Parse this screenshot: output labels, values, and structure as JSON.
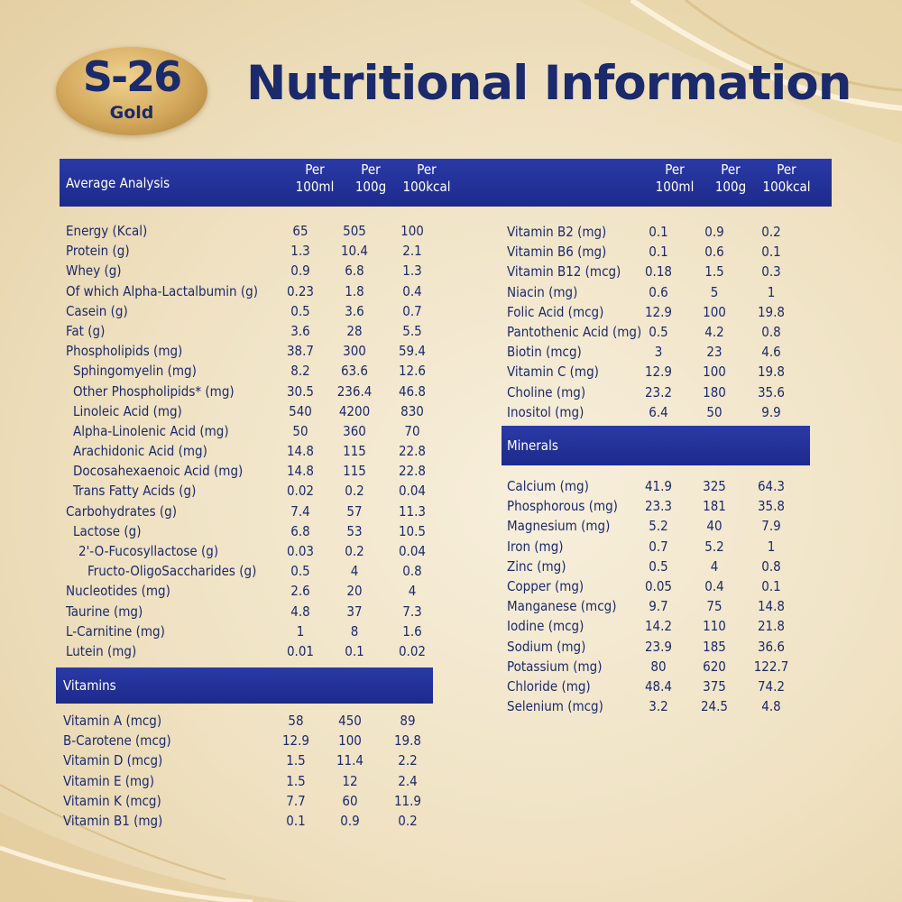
{
  "logo": {
    "brand": "S-26",
    "sub": "Gold"
  },
  "title": "Nutritional Information",
  "headers": {
    "average_analysis": "Average Analysis",
    "columns": [
      "Per\n100ml",
      "Per\n100g",
      "Per\n100kcal"
    ],
    "vitamins": "Vitamins",
    "minerals": "Minerals"
  },
  "average_analysis_rows": [
    {
      "name": "Energy (Kcal)",
      "v": [
        "65",
        "505",
        "100"
      ]
    },
    {
      "name": "Protein (g)",
      "v": [
        "1.3",
        "10.4",
        "2.1"
      ]
    },
    {
      "name": "Whey (g)",
      "v": [
        "0.9",
        "6.8",
        "1.3"
      ]
    },
    {
      "name": "Of which Alpha-Lactalbumin (g)",
      "v": [
        "0.23",
        "1.8",
        "0.4"
      ]
    },
    {
      "name": "Casein (g)",
      "v": [
        "0.5",
        "3.6",
        "0.7"
      ]
    },
    {
      "name": "Fat (g)",
      "v": [
        "3.6",
        "28",
        "5.5"
      ]
    },
    {
      "name": "Phospholipids (mg)",
      "v": [
        "38.7",
        "300",
        "59.4"
      ]
    },
    {
      "name": "Sphingomyelin (mg)",
      "v": [
        "8.2",
        "63.6",
        "12.6"
      ],
      "indent": 1
    },
    {
      "name": "Other Phospholipids* (mg)",
      "v": [
        "30.5",
        "236.4",
        "46.8"
      ],
      "indent": 1
    },
    {
      "name": "Linoleic Acid (mg)",
      "v": [
        "540",
        "4200",
        "830"
      ],
      "indent": 1
    },
    {
      "name": "Alpha-Linolenic Acid (mg)",
      "v": [
        "50",
        "360",
        "70"
      ],
      "indent": 1
    },
    {
      "name": "Arachidonic Acid (mg)",
      "v": [
        "14.8",
        "115",
        "22.8"
      ],
      "indent": 1
    },
    {
      "name": "Docosahexaenoic Acid (mg)",
      "v": [
        "14.8",
        "115",
        "22.8"
      ],
      "indent": 1
    },
    {
      "name": "Trans Fatty Acids (g)",
      "v": [
        "0.02",
        "0.2",
        "0.04"
      ],
      "indent": 1
    },
    {
      "name": "Carbohydrates (g)",
      "v": [
        "7.4",
        "57",
        "11.3"
      ]
    },
    {
      "name": "Lactose (g)",
      "v": [
        "6.8",
        "53",
        "10.5"
      ],
      "indent": 1
    },
    {
      "name": "2'-O-Fucosyllactose (g)",
      "v": [
        "0.03",
        "0.2",
        "0.04"
      ],
      "indent": 2
    },
    {
      "name": "Fructo-OligoSaccharides (g)",
      "v": [
        "0.5",
        "4",
        "0.8"
      ],
      "indent": 3
    },
    {
      "name": "Nucleotides (mg)",
      "v": [
        "2.6",
        "20",
        "4"
      ]
    },
    {
      "name": "Taurine (mg)",
      "v": [
        "4.8",
        "37",
        "7.3"
      ]
    },
    {
      "name": "L-Carnitine (mg)",
      "v": [
        "1",
        "8",
        "1.6"
      ]
    },
    {
      "name": "Lutein (mg)",
      "v": [
        "0.01",
        "0.1",
        "0.02"
      ]
    }
  ],
  "vitamins_left_rows": [
    {
      "name": "Vitamin A (mcg)",
      "v": [
        "58",
        "450",
        "89"
      ]
    },
    {
      "name": "B-Carotene (mcg)",
      "v": [
        "12.9",
        "100",
        "19.8"
      ]
    },
    {
      "name": "Vitamin D (mcg)",
      "v": [
        "1.5",
        "11.4",
        "2.2"
      ]
    },
    {
      "name": "Vitamin E (mg)",
      "v": [
        "1.5",
        "12",
        "2.4"
      ]
    },
    {
      "name": "Vitamin K (mcg)",
      "v": [
        "7.7",
        "60",
        "11.9"
      ]
    },
    {
      "name": "Vitamin B1 (mg)",
      "v": [
        "0.1",
        "0.9",
        "0.2"
      ]
    }
  ],
  "vitamins_right_rows": [
    {
      "name": "Vitamin B2 (mg)",
      "v": [
        "0.1",
        "0.9",
        "0.2"
      ]
    },
    {
      "name": "Vitamin B6 (mg)",
      "v": [
        "0.1",
        "0.6",
        "0.1"
      ]
    },
    {
      "name": "Vitamin B12 (mcg)",
      "v": [
        "0.18",
        "1.5",
        "0.3"
      ]
    },
    {
      "name": "Niacin (mg)",
      "v": [
        "0.6",
        "5",
        "1"
      ]
    },
    {
      "name": "Folic Acid (mcg)",
      "v": [
        "12.9",
        "100",
        "19.8"
      ]
    },
    {
      "name": "Pantothenic Acid (mg)",
      "v": [
        "0.5",
        "4.2",
        "0.8"
      ]
    },
    {
      "name": "Biotin (mcg)",
      "v": [
        "3",
        "23",
        "4.6"
      ]
    },
    {
      "name": "Vitamin C (mg)",
      "v": [
        "12.9",
        "100",
        "19.8"
      ]
    },
    {
      "name": "Choline (mg)",
      "v": [
        "23.2",
        "180",
        "35.6"
      ]
    },
    {
      "name": "Inositol (mg)",
      "v": [
        "6.4",
        "50",
        "9.9"
      ]
    }
  ],
  "minerals_rows": [
    {
      "name": "Calcium (mg)",
      "v": [
        "41.9",
        "325",
        "64.3"
      ]
    },
    {
      "name": "Phosphorous (mg)",
      "v": [
        "23.3",
        "181",
        "35.8"
      ]
    },
    {
      "name": "Magnesium (mg)",
      "v": [
        "5.2",
        "40",
        "7.9"
      ]
    },
    {
      "name": "Iron (mg)",
      "v": [
        "0.7",
        "5.2",
        "1"
      ]
    },
    {
      "name": "Zinc (mg)",
      "v": [
        "0.5",
        "4",
        "0.8"
      ]
    },
    {
      "name": "Copper (mg)",
      "v": [
        "0.05",
        "0.4",
        "0.1"
      ]
    },
    {
      "name": "Manganese (mcg)",
      "v": [
        "9.7",
        "75",
        "14.8"
      ]
    },
    {
      "name": "Iodine (mcg)",
      "v": [
        "14.2",
        "110",
        "21.8"
      ]
    },
    {
      "name": "Sodium (mg)",
      "v": [
        "23.9",
        "185",
        "36.6"
      ]
    },
    {
      "name": "Potassium (mg)",
      "v": [
        "80",
        "620",
        "122.7"
      ]
    },
    {
      "name": "Chloride (mg)",
      "v": [
        "48.4",
        "375",
        "74.2"
      ]
    },
    {
      "name": "Selenium (mcg)",
      "v": [
        "3.2",
        "24.5",
        "4.8"
      ]
    }
  ],
  "colors": {
    "navy": "#1b2a6b",
    "header_blue": "#2a3aa6",
    "cream": "#f4ead3",
    "gold": "#d3a85c"
  }
}
